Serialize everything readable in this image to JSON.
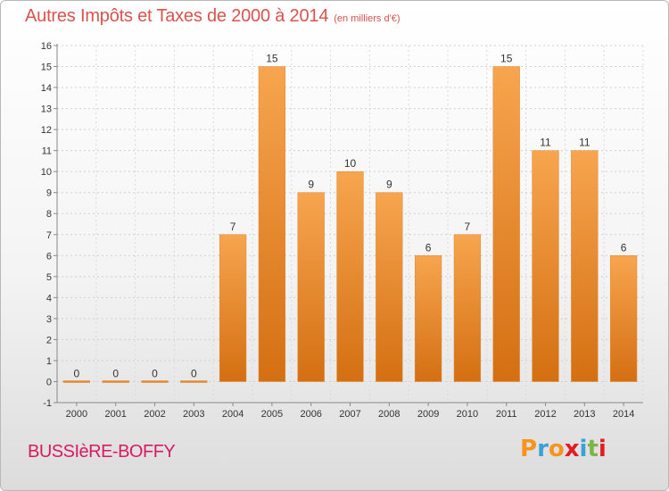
{
  "header": {
    "title": "Autres Impôts et Taxes de 2000 à 2014",
    "unit": "(en milliers d'€)"
  },
  "footer": {
    "commune": "BUSSIèRE-BOFFY",
    "logo_letters": [
      "P",
      "r",
      "o",
      "x",
      "i",
      "t",
      "i"
    ],
    "logo_colors": [
      "#f7941d",
      "#3aa0d8",
      "#f7941d",
      "#e31b23",
      "#3aa0d8",
      "#7ab648",
      "#e31b23"
    ]
  },
  "chart_data": {
    "type": "bar",
    "title": "Autres Impôts et Taxes de 2000 à 2014",
    "subtitle": "(en milliers d'€)",
    "xlabel": "",
    "ylabel": "",
    "categories": [
      "2000",
      "2001",
      "2002",
      "2003",
      "2004",
      "2005",
      "2006",
      "2007",
      "2008",
      "2009",
      "2010",
      "2011",
      "2012",
      "2013",
      "2014"
    ],
    "values": [
      0,
      0,
      0,
      0,
      7,
      15,
      9,
      10,
      9,
      6,
      7,
      15,
      11,
      11,
      6
    ],
    "data_labels": [
      "0",
      "0",
      "0",
      "0",
      "7",
      "15",
      "9",
      "10",
      "9",
      "6",
      "7",
      "15",
      "11",
      "11",
      "6"
    ],
    "ylim": [
      -1,
      16
    ],
    "yticks": [
      "-1",
      "0",
      "1",
      "2",
      "3",
      "4",
      "5",
      "6",
      "7",
      "8",
      "9",
      "10",
      "11",
      "12",
      "13",
      "14",
      "15",
      "16"
    ],
    "grid": true,
    "bar_color": "#f08b2c",
    "legend": "none"
  }
}
